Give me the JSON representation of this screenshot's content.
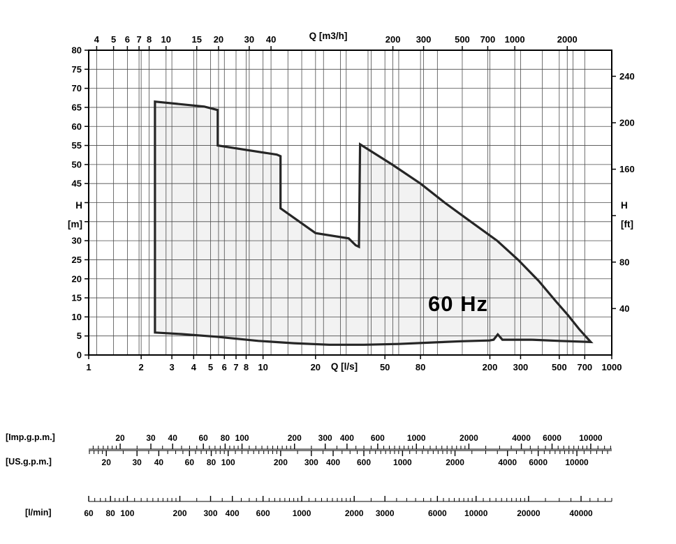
{
  "chart_data": {
    "type": "area",
    "frequency_label": "60 Hz",
    "x_axis_bottom": {
      "label": "Q [l/s]",
      "scale": "log",
      "min": 1,
      "max": 1000,
      "labeled_ticks": [
        1,
        2,
        3,
        4,
        5,
        6,
        7,
        8,
        10,
        20,
        50,
        80,
        200,
        300,
        500,
        700,
        1000
      ]
    },
    "x_axis_top": {
      "label": "Q [m3/h]",
      "scale": "log",
      "to_ls_divisor": 3.6,
      "labeled_ticks": [
        4,
        5,
        6,
        7,
        8,
        10,
        15,
        20,
        30,
        40,
        200,
        300,
        500,
        700,
        1000,
        2000
      ]
    },
    "y_axis_left": {
      "label_lines": [
        "H",
        "[m]"
      ],
      "min": 0,
      "max": 80,
      "tick_step": 5,
      "labeled_ticks": [
        0,
        5,
        10,
        15,
        20,
        25,
        30,
        45,
        50,
        55,
        60,
        65,
        70,
        75,
        80
      ]
    },
    "y_axis_right": {
      "label_lines": [
        "H",
        "[ft]"
      ],
      "ft_per_m": 3.2808,
      "tick_values": [
        40,
        80,
        120,
        160,
        200,
        240
      ],
      "labeled_ticks": [
        40,
        80,
        160,
        200,
        240
      ]
    },
    "grid_x_values_ls": [
      1.111,
      1.389,
      1.667,
      1.944,
      2,
      2.222,
      2.778,
      3,
      4,
      4.167,
      5,
      5.556,
      6,
      7,
      8,
      8.333,
      10,
      11.111,
      13.889,
      16.667,
      20,
      22.222,
      27.778,
      30,
      40,
      41.667,
      50,
      55.556,
      60,
      80,
      83.333,
      100,
      138.889,
      194.444,
      200,
      277.778,
      300,
      400,
      500,
      555.556,
      600,
      700
    ],
    "envelope": {
      "points_q_h": [
        [
          2.4,
          66.5
        ],
        [
          4.6,
          65.2
        ],
        [
          5.5,
          64.3
        ],
        [
          5.5,
          55.0
        ],
        [
          12.0,
          52.6
        ],
        [
          12.6,
          52.2
        ],
        [
          12.6,
          38.5
        ],
        [
          20.0,
          32.0
        ],
        [
          31.0,
          30.6
        ],
        [
          34.0,
          28.8
        ],
        [
          35.5,
          28.4
        ],
        [
          36.0,
          55.3
        ],
        [
          55,
          50.0
        ],
        [
          80,
          45.0
        ],
        [
          110,
          40.0
        ],
        [
          150,
          35.5
        ],
        [
          220,
          30.0
        ],
        [
          290,
          25.0
        ],
        [
          380,
          19.5
        ],
        [
          480,
          14.0
        ],
        [
          560,
          10.5
        ],
        [
          650,
          6.8
        ],
        [
          758,
          3.4
        ],
        [
          500,
          3.7
        ],
        [
          345,
          4.0
        ],
        [
          236,
          4.0
        ],
        [
          222,
          5.4
        ],
        [
          210,
          4.0
        ],
        [
          199,
          3.8
        ],
        [
          137,
          3.6
        ],
        [
          95,
          3.3
        ],
        [
          60,
          2.9
        ],
        [
          38,
          2.7
        ],
        [
          24,
          2.7
        ],
        [
          15,
          3.1
        ],
        [
          9.4,
          3.7
        ],
        [
          5.4,
          4.8
        ],
        [
          3.4,
          5.5
        ],
        [
          2.4,
          5.9
        ]
      ]
    },
    "rulers": [
      {
        "id": "imp",
        "label": "[Imp.g.p.m.]",
        "units_per_ls": 13.198,
        "labeled_ticks": [
          20,
          30,
          40,
          60,
          80,
          100,
          200,
          300,
          400,
          600,
          1000,
          2000,
          4000,
          6000,
          10000
        ]
      },
      {
        "id": "us",
        "label": "[US.g.p.m.]",
        "units_per_ls": 15.85,
        "labeled_ticks": [
          20,
          30,
          40,
          60,
          80,
          100,
          200,
          300,
          400,
          600,
          1000,
          2000,
          4000,
          6000,
          10000
        ]
      },
      {
        "id": "lmin",
        "label": "[l/min]",
        "units_per_ls": 60,
        "labeled_ticks": [
          60,
          80,
          100,
          200,
          300,
          400,
          600,
          1000,
          2000,
          3000,
          6000,
          10000,
          20000,
          40000
        ]
      }
    ],
    "colors": {
      "grid": "#4a4a4a",
      "axis": "#000000",
      "envelope_fill": "#f2f2f2",
      "envelope_stroke": "#262626"
    }
  }
}
